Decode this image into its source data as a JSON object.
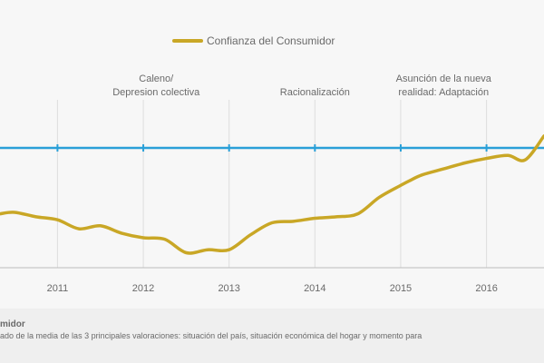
{
  "chart_data": {
    "type": "line",
    "title": "",
    "xlabel": "",
    "ylabel": "",
    "legend": {
      "placement": "top-center",
      "entries": [
        "Confianza del Consumidor"
      ]
    },
    "x_ticks": [
      "2011",
      "2012",
      "2013",
      "2014",
      "2015",
      "2016"
    ],
    "x_range": [
      2010.33,
      2016.67
    ],
    "grid": {
      "vertical": true,
      "horizontal": false
    },
    "colors": {
      "series": "#c9a726",
      "reference": "#2aa0d8",
      "grid": "#dddddd",
      "axis": "#bdbdbd"
    },
    "series": [
      {
        "name": "Confianza del Consumidor",
        "x": [
          2010.33,
          2010.5,
          2010.75,
          2011.0,
          2011.25,
          2011.5,
          2011.75,
          2012.0,
          2012.25,
          2012.5,
          2012.75,
          2013.0,
          2013.25,
          2013.5,
          2013.75,
          2014.0,
          2014.25,
          2014.5,
          2014.75,
          2015.0,
          2015.1,
          2015.25,
          2015.5,
          2015.75,
          2016.0,
          2016.25,
          2016.45,
          2016.67
        ],
        "values": [
          0.36,
          0.37,
          0.34,
          0.32,
          0.26,
          0.28,
          0.23,
          0.2,
          0.19,
          0.1,
          0.12,
          0.12,
          0.22,
          0.3,
          0.31,
          0.33,
          0.34,
          0.36,
          0.47,
          0.55,
          0.58,
          0.62,
          0.66,
          0.7,
          0.73,
          0.75,
          0.72,
          0.88
        ]
      }
    ],
    "reference_line": {
      "value": 0.8
    },
    "annotations": [
      {
        "x": 2012.15,
        "lines": [
          "Caleno/",
          "Depresion colectiva"
        ]
      },
      {
        "x": 2014.0,
        "lines": [
          "Racionalización"
        ]
      },
      {
        "x": 2015.5,
        "lines": [
          "Asunción de la nueva",
          "realidad: Adaptación"
        ]
      }
    ]
  },
  "footer": {
    "title": "midor",
    "note": "ado de la media de las 3 principales valoraciones: situación del país, situación económica del hogar y momento para"
  }
}
